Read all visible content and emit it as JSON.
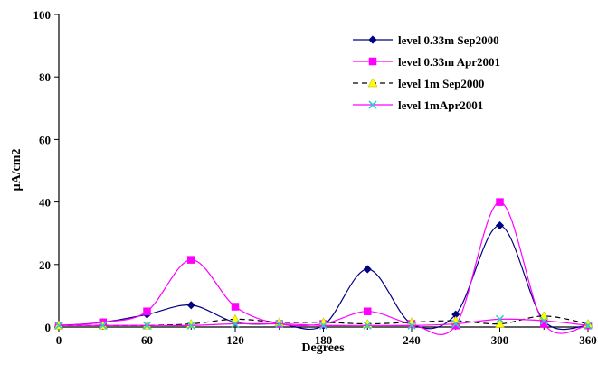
{
  "chart_data": {
    "type": "line",
    "title": "",
    "xlabel": "Degrees",
    "ylabel": "µA/cm2",
    "xlim": [
      0,
      360
    ],
    "ylim": [
      0,
      100
    ],
    "xticks": [
      "0",
      "60",
      "120",
      "180",
      "240",
      "300",
      "360"
    ],
    "yticks": [
      "0",
      "20",
      "40",
      "60",
      "80",
      "100"
    ],
    "x": [
      0,
      30,
      60,
      90,
      120,
      150,
      180,
      210,
      240,
      270,
      300,
      330,
      360
    ],
    "grid": false,
    "legend_position": "top-right",
    "series": [
      {
        "name": "level 0.33m Sep2000",
        "color": "#000080",
        "marker": "diamond",
        "dash": "solid",
        "values": [
          0.5,
          1.5,
          4,
          7,
          1.5,
          1,
          0.5,
          18.5,
          1,
          4,
          32.5,
          2,
          0.5
        ]
      },
      {
        "name": "level 0.33m Apr2001",
        "color": "#ff00ff",
        "marker": "square",
        "dash": "solid",
        "values": [
          0.5,
          1.5,
          5,
          21.5,
          6.5,
          1,
          1,
          5,
          1,
          0.5,
          40,
          1,
          0.5
        ]
      },
      {
        "name": "level 1m Sep2000",
        "color": "#000000",
        "marker": "triangle",
        "markerColor": "#ffff00",
        "dash": "dashed",
        "values": [
          0.5,
          0.5,
          0.5,
          1,
          2.5,
          1.5,
          1.5,
          1,
          1.5,
          2,
          1,
          3.5,
          1
        ]
      },
      {
        "name": "level 1mApr2001",
        "color": "#ff00ff",
        "marker": "x",
        "markerColor": "#33cccc",
        "dash": "solid",
        "values": [
          0.5,
          0.5,
          0.5,
          0.5,
          1,
          1,
          0.5,
          0.5,
          0.5,
          1,
          2.5,
          2,
          0.5
        ]
      }
    ]
  }
}
